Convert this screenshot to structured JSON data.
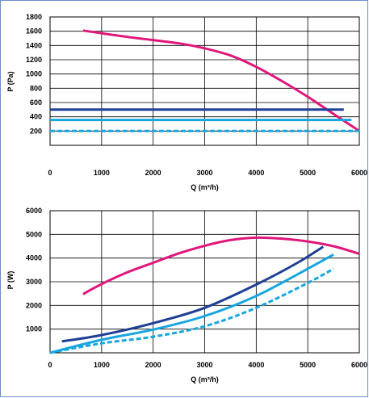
{
  "chart_data": [
    {
      "type": "line",
      "xlabel": "Q (m³/h)",
      "ylabel": "P (Pa)",
      "xlim": [
        0,
        6000
      ],
      "ylim": [
        0,
        1800
      ],
      "xticks": [
        0,
        1000,
        2000,
        3000,
        4000,
        5000,
        6000
      ],
      "yticks": [
        200,
        400,
        600,
        800,
        1000,
        1200,
        1400,
        1600,
        1800
      ],
      "grid": true,
      "series": [
        {
          "color": "#e0177b",
          "style": "solid",
          "points": [
            [
              640,
              1610
            ],
            [
              1500,
              1520
            ],
            [
              2500,
              1430
            ],
            [
              3000,
              1360
            ],
            [
              3500,
              1260
            ],
            [
              4000,
              1100
            ],
            [
              4500,
              900
            ],
            [
              5000,
              680
            ],
            [
              5500,
              440
            ],
            [
              6000,
              200
            ]
          ]
        },
        {
          "color": "#1f3f95",
          "style": "solid",
          "points": [
            [
              0,
              500
            ],
            [
              5700,
              500
            ]
          ]
        },
        {
          "color": "#18a6df",
          "style": "solid",
          "points": [
            [
              0,
              355
            ],
            [
              5850,
              355
            ]
          ]
        },
        {
          "color": "#18a6df",
          "style": "dashed",
          "points": [
            [
              0,
              200
            ],
            [
              6000,
              200
            ]
          ]
        }
      ]
    },
    {
      "type": "line",
      "xlabel": "Q (m³/h)",
      "ylabel": "P (W)",
      "xlim": [
        0,
        6000
      ],
      "ylim": [
        0,
        6000
      ],
      "xticks": [
        0,
        1000,
        2000,
        3000,
        4000,
        5000,
        6000
      ],
      "yticks": [
        1000,
        2000,
        3000,
        4000,
        5000,
        6000
      ],
      "grid": true,
      "series": [
        {
          "color": "#e0177b",
          "style": "solid",
          "points": [
            [
              640,
              2480
            ],
            [
              1000,
              2900
            ],
            [
              1500,
              3400
            ],
            [
              2000,
              3800
            ],
            [
              2500,
              4200
            ],
            [
              3000,
              4520
            ],
            [
              3500,
              4760
            ],
            [
              4000,
              4860
            ],
            [
              4500,
              4820
            ],
            [
              5000,
              4700
            ],
            [
              5500,
              4500
            ],
            [
              6000,
              4180
            ]
          ]
        },
        {
          "color": "#1f3f95",
          "style": "solid",
          "points": [
            [
              230,
              480
            ],
            [
              1000,
              750
            ],
            [
              2000,
              1250
            ],
            [
              3000,
              1900
            ],
            [
              4000,
              2880
            ],
            [
              4800,
              3800
            ],
            [
              5300,
              4480
            ]
          ]
        },
        {
          "color": "#18a6df",
          "style": "solid",
          "points": [
            [
              0,
              0
            ],
            [
              1000,
              550
            ],
            [
              2000,
              980
            ],
            [
              3000,
              1550
            ],
            [
              4000,
              2400
            ],
            [
              5000,
              3550
            ],
            [
              5500,
              4150
            ]
          ]
        },
        {
          "color": "#18a6df",
          "style": "dashed",
          "points": [
            [
              0,
              0
            ],
            [
              1000,
              400
            ],
            [
              2000,
              680
            ],
            [
              3000,
              1120
            ],
            [
              4000,
              1900
            ],
            [
              5000,
              2950
            ],
            [
              5500,
              3550
            ]
          ]
        }
      ]
    }
  ]
}
